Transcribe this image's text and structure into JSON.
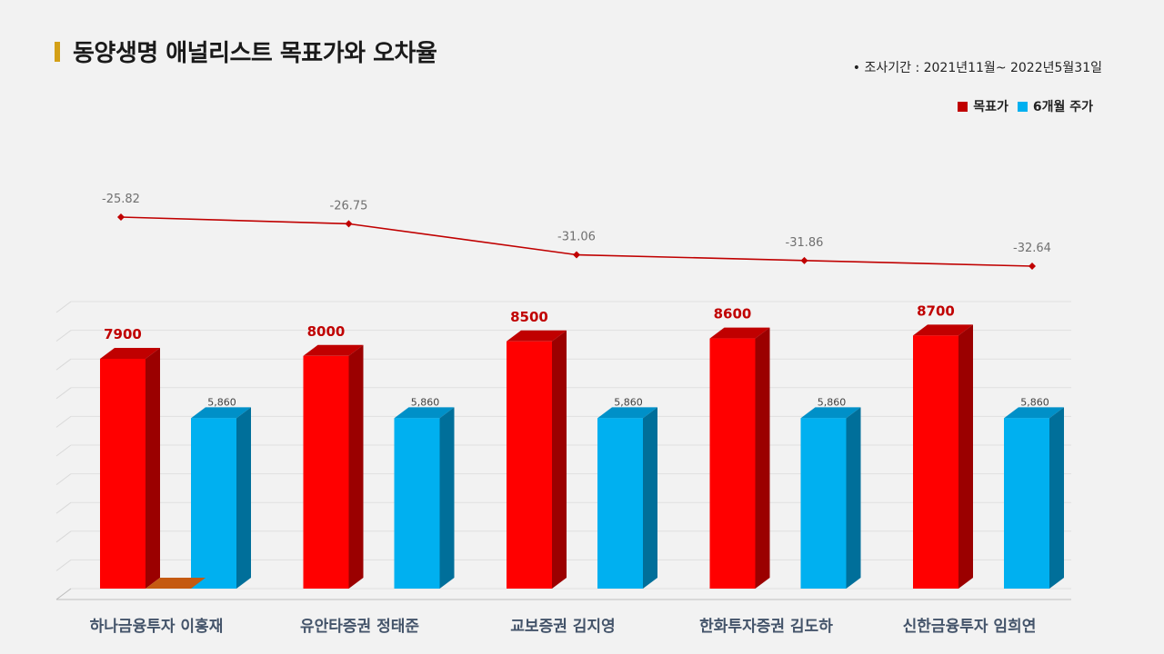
{
  "header": {
    "title": "동양생명 애널리스트 목표가와 오차율",
    "period": "•  조사기간 : 2021년11월~ 2022년5월31일"
  },
  "legend": {
    "target_label": "목표가",
    "price_label": "6개월 주가"
  },
  "colors": {
    "target": "#ff0000",
    "price": "#00b0f0",
    "line": "#c00000"
  },
  "chart_data": {
    "type": "bar",
    "categories": [
      "하나금융투자 이홍재",
      "유안타증권 정태준",
      "교보증권 김지영",
      "한화투자증권 김도하",
      "신한금융투자 임희연"
    ],
    "series": [
      {
        "name": "목표가",
        "values": [
          7900,
          8000,
          8500,
          8600,
          8700
        ],
        "labels": [
          "7900",
          "8000",
          "8500",
          "8600",
          "8700"
        ]
      },
      {
        "name": "6개월 주가",
        "values": [
          5860,
          5860,
          5860,
          5860,
          5860
        ],
        "labels": [
          "5,860",
          "5,860",
          "5,860",
          "5,860",
          "5,860"
        ]
      }
    ],
    "error_rate": {
      "type": "line",
      "values": [
        -25.82,
        -26.75,
        -31.06,
        -31.86,
        -32.64
      ],
      "labels": [
        "-25.82",
        "-26.75",
        "-31.06",
        "-31.86",
        "-32.64"
      ]
    },
    "ylim": [
      0,
      9000
    ],
    "grid": true,
    "legend_position": "top-right"
  }
}
